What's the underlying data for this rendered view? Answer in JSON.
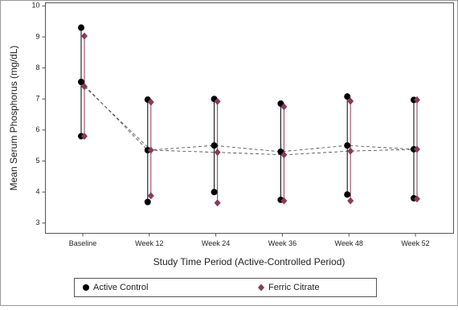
{
  "chart_data": {
    "type": "line-range",
    "x_label": "Study Time Period (Active-Controlled Period)",
    "y_label": "Mean Serum Phosphorus (mg/dL)",
    "categories": [
      "Baseline",
      "Week 12",
      "Week 24",
      "Week 36",
      "Week 48",
      "Week 52"
    ],
    "series": [
      {
        "name": "Active Control",
        "color": "#000000",
        "marker": "circle",
        "values": [
          7.55,
          5.35,
          5.5,
          5.3,
          5.5,
          5.38
        ],
        "high": [
          9.3,
          6.98,
          7.0,
          6.85,
          7.08,
          6.97
        ],
        "low": [
          5.8,
          3.68,
          4.0,
          3.75,
          3.92,
          3.8
        ]
      },
      {
        "name": "Ferric Citrate",
        "color": "#8b3a5a",
        "marker": "diamond",
        "values": [
          7.4,
          5.35,
          5.28,
          5.2,
          5.32,
          5.38
        ],
        "high": [
          9.03,
          6.9,
          6.92,
          6.75,
          6.93,
          6.97
        ],
        "low": [
          5.8,
          3.88,
          3.65,
          3.72,
          3.72,
          3.78
        ]
      }
    ],
    "ylim": [
      2.67,
      10.1
    ],
    "yticks": [
      3,
      4,
      5,
      6,
      7,
      8,
      9,
      10
    ]
  }
}
